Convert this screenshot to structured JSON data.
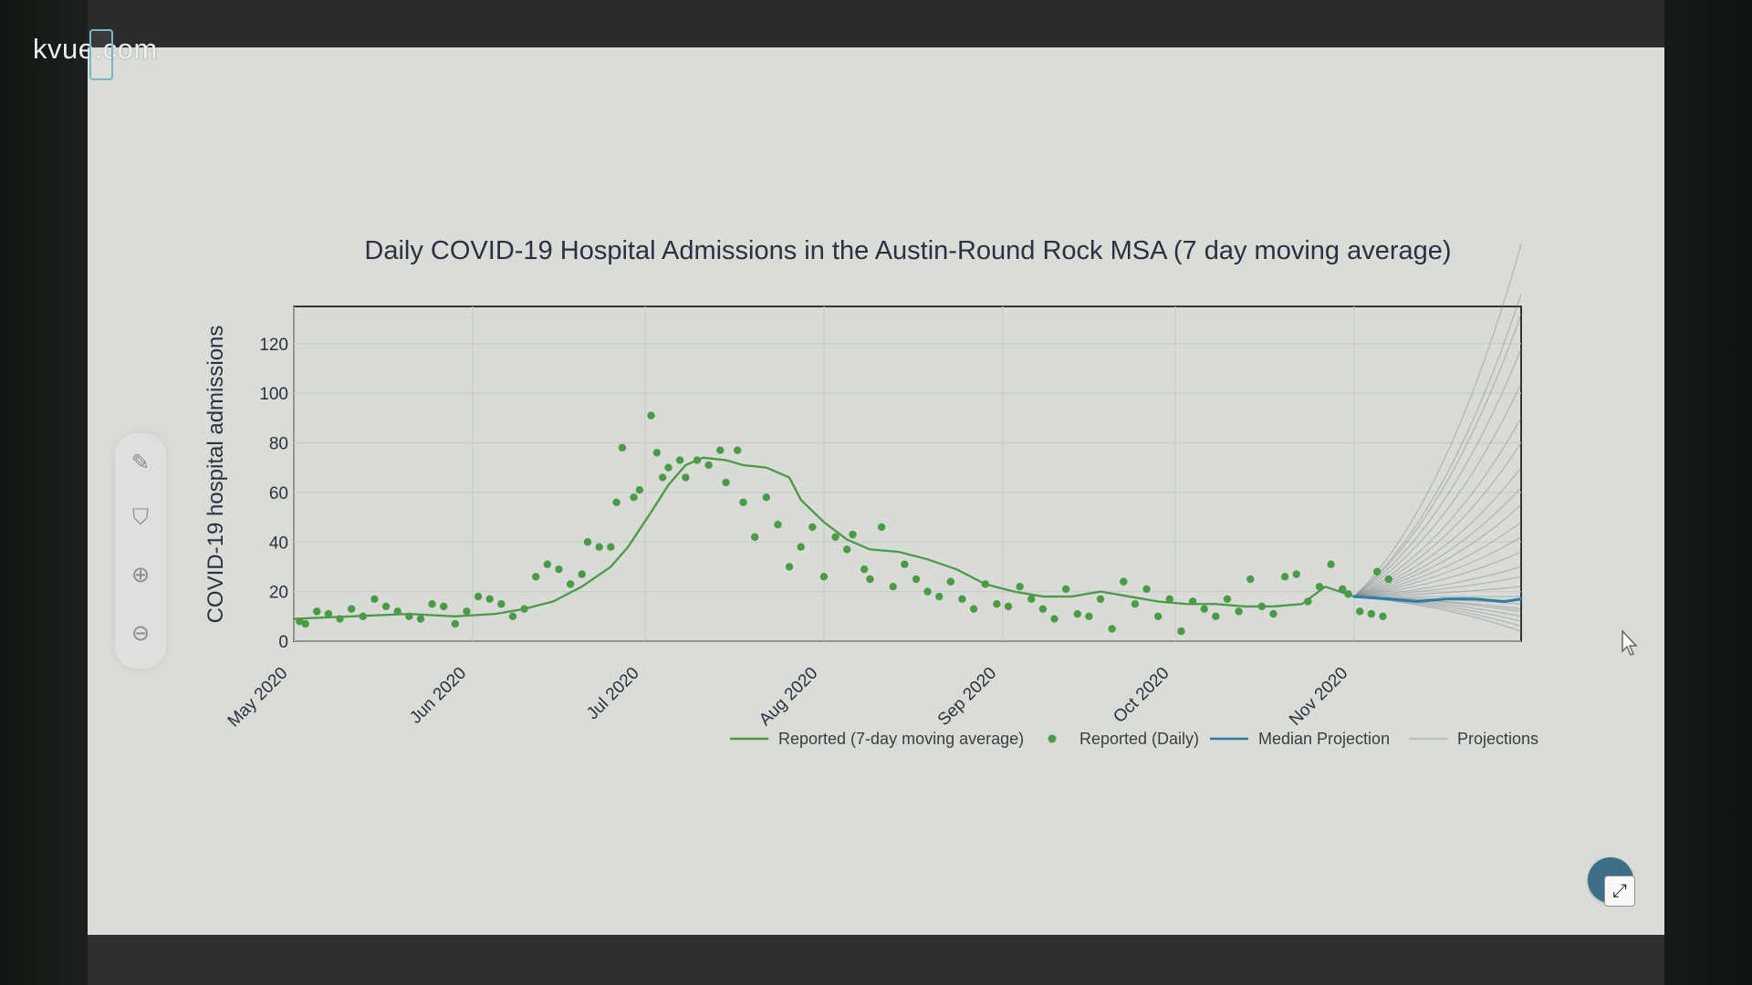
{
  "watermark": "kvue.com",
  "toolbar": {
    "draw_icon": "✎",
    "filter_icon": "⛉",
    "zoom_in_icon": "⊕",
    "zoom_out_icon": "⊖"
  },
  "expand_button": {
    "icon": "⤢"
  },
  "colors": {
    "background": "#d9dcd7",
    "plot_border": "#323232",
    "grid": "#c9ccca",
    "green": "#4a9a48",
    "median": "#2a7fa8",
    "projection": "#7a7d82"
  },
  "chart_data": {
    "type": "line",
    "title": "Daily COVID-19 Hospital Admissions in the Austin-Round Rock MSA (7 day moving average)",
    "xlabel": "",
    "ylabel": "COVID-19 hospital admissions",
    "ylim": [
      0,
      135
    ],
    "y_ticks": [
      0,
      20,
      40,
      60,
      80,
      100,
      120
    ],
    "x_ticks": [
      {
        "label": "May 2020",
        "day": 0
      },
      {
        "label": "Jun 2020",
        "day": 31
      },
      {
        "label": "Jul 2020",
        "day": 61
      },
      {
        "label": "Aug 2020",
        "day": 92
      },
      {
        "label": "Sep 2020",
        "day": 123
      },
      {
        "label": "Oct 2020",
        "day": 153
      },
      {
        "label": "Nov 2020",
        "day": 184
      }
    ],
    "xlim_days": [
      0,
      213
    ],
    "legend": {
      "position": "bottom-right",
      "entries": [
        "Reported (7-day moving average)",
        "Reported (Daily)",
        "Median Projection",
        "Projections"
      ]
    },
    "series": [
      {
        "name": "Reported (7-day moving average)",
        "type": "line",
        "points": [
          {
            "day": 0,
            "value": 9
          },
          {
            "day": 10,
            "value": 10
          },
          {
            "day": 20,
            "value": 11
          },
          {
            "day": 28,
            "value": 10
          },
          {
            "day": 35,
            "value": 11
          },
          {
            "day": 40,
            "value": 13
          },
          {
            "day": 45,
            "value": 16
          },
          {
            "day": 50,
            "value": 22
          },
          {
            "day": 55,
            "value": 30
          },
          {
            "day": 58,
            "value": 38
          },
          {
            "day": 62,
            "value": 52
          },
          {
            "day": 65,
            "value": 63
          },
          {
            "day": 68,
            "value": 71
          },
          {
            "day": 71,
            "value": 74
          },
          {
            "day": 75,
            "value": 73
          },
          {
            "day": 78,
            "value": 71
          },
          {
            "day": 82,
            "value": 70
          },
          {
            "day": 86,
            "value": 66
          },
          {
            "day": 88,
            "value": 57
          },
          {
            "day": 92,
            "value": 48
          },
          {
            "day": 96,
            "value": 41
          },
          {
            "day": 100,
            "value": 37
          },
          {
            "day": 105,
            "value": 36
          },
          {
            "day": 110,
            "value": 33
          },
          {
            "day": 115,
            "value": 29
          },
          {
            "day": 120,
            "value": 23
          },
          {
            "day": 125,
            "value": 20
          },
          {
            "day": 130,
            "value": 18
          },
          {
            "day": 135,
            "value": 18
          },
          {
            "day": 140,
            "value": 20
          },
          {
            "day": 145,
            "value": 18
          },
          {
            "day": 150,
            "value": 16
          },
          {
            "day": 155,
            "value": 15
          },
          {
            "day": 160,
            "value": 15
          },
          {
            "day": 165,
            "value": 14
          },
          {
            "day": 170,
            "value": 14
          },
          {
            "day": 175,
            "value": 15
          },
          {
            "day": 179,
            "value": 22
          },
          {
            "day": 184,
            "value": 18
          }
        ]
      },
      {
        "name": "Reported (Daily)",
        "type": "scatter",
        "points": [
          {
            "day": 1,
            "value": 8
          },
          {
            "day": 2,
            "value": 7
          },
          {
            "day": 4,
            "value": 12
          },
          {
            "day": 6,
            "value": 11
          },
          {
            "day": 8,
            "value": 9
          },
          {
            "day": 10,
            "value": 13
          },
          {
            "day": 12,
            "value": 10
          },
          {
            "day": 14,
            "value": 17
          },
          {
            "day": 16,
            "value": 14
          },
          {
            "day": 18,
            "value": 12
          },
          {
            "day": 20,
            "value": 10
          },
          {
            "day": 22,
            "value": 9
          },
          {
            "day": 24,
            "value": 15
          },
          {
            "day": 26,
            "value": 14
          },
          {
            "day": 28,
            "value": 7
          },
          {
            "day": 30,
            "value": 12
          },
          {
            "day": 32,
            "value": 18
          },
          {
            "day": 34,
            "value": 17
          },
          {
            "day": 36,
            "value": 15
          },
          {
            "day": 38,
            "value": 10
          },
          {
            "day": 40,
            "value": 13
          },
          {
            "day": 42,
            "value": 26
          },
          {
            "day": 44,
            "value": 31
          },
          {
            "day": 46,
            "value": 29
          },
          {
            "day": 48,
            "value": 23
          },
          {
            "day": 50,
            "value": 27
          },
          {
            "day": 51,
            "value": 40
          },
          {
            "day": 53,
            "value": 38
          },
          {
            "day": 55,
            "value": 38
          },
          {
            "day": 56,
            "value": 56
          },
          {
            "day": 57,
            "value": 78
          },
          {
            "day": 59,
            "value": 58
          },
          {
            "day": 60,
            "value": 61
          },
          {
            "day": 62,
            "value": 91
          },
          {
            "day": 63,
            "value": 76
          },
          {
            "day": 64,
            "value": 66
          },
          {
            "day": 65,
            "value": 70
          },
          {
            "day": 67,
            "value": 73
          },
          {
            "day": 68,
            "value": 66
          },
          {
            "day": 70,
            "value": 73
          },
          {
            "day": 72,
            "value": 71
          },
          {
            "day": 74,
            "value": 77
          },
          {
            "day": 75,
            "value": 64
          },
          {
            "day": 77,
            "value": 77
          },
          {
            "day": 78,
            "value": 56
          },
          {
            "day": 80,
            "value": 42
          },
          {
            "day": 82,
            "value": 58
          },
          {
            "day": 84,
            "value": 47
          },
          {
            "day": 86,
            "value": 30
          },
          {
            "day": 88,
            "value": 38
          },
          {
            "day": 90,
            "value": 46
          },
          {
            "day": 92,
            "value": 26
          },
          {
            "day": 94,
            "value": 42
          },
          {
            "day": 96,
            "value": 37
          },
          {
            "day": 97,
            "value": 43
          },
          {
            "day": 99,
            "value": 29
          },
          {
            "day": 100,
            "value": 25
          },
          {
            "day": 102,
            "value": 46
          },
          {
            "day": 104,
            "value": 22
          },
          {
            "day": 106,
            "value": 31
          },
          {
            "day": 108,
            "value": 25
          },
          {
            "day": 110,
            "value": 20
          },
          {
            "day": 112,
            "value": 18
          },
          {
            "day": 114,
            "value": 24
          },
          {
            "day": 116,
            "value": 17
          },
          {
            "day": 118,
            "value": 13
          },
          {
            "day": 120,
            "value": 23
          },
          {
            "day": 122,
            "value": 15
          },
          {
            "day": 124,
            "value": 14
          },
          {
            "day": 126,
            "value": 22
          },
          {
            "day": 128,
            "value": 17
          },
          {
            "day": 130,
            "value": 13
          },
          {
            "day": 132,
            "value": 9
          },
          {
            "day": 134,
            "value": 21
          },
          {
            "day": 136,
            "value": 11
          },
          {
            "day": 138,
            "value": 10
          },
          {
            "day": 140,
            "value": 17
          },
          {
            "day": 142,
            "value": 5
          },
          {
            "day": 144,
            "value": 24
          },
          {
            "day": 146,
            "value": 15
          },
          {
            "day": 148,
            "value": 21
          },
          {
            "day": 150,
            "value": 10
          },
          {
            "day": 152,
            "value": 17
          },
          {
            "day": 154,
            "value": 4
          },
          {
            "day": 156,
            "value": 16
          },
          {
            "day": 158,
            "value": 13
          },
          {
            "day": 160,
            "value": 10
          },
          {
            "day": 162,
            "value": 17
          },
          {
            "day": 164,
            "value": 12
          },
          {
            "day": 166,
            "value": 25
          },
          {
            "day": 168,
            "value": 14
          },
          {
            "day": 170,
            "value": 11
          },
          {
            "day": 172,
            "value": 26
          },
          {
            "day": 174,
            "value": 27
          },
          {
            "day": 176,
            "value": 16
          },
          {
            "day": 178,
            "value": 22
          },
          {
            "day": 180,
            "value": 31
          },
          {
            "day": 182,
            "value": 21
          },
          {
            "day": 183,
            "value": 19
          },
          {
            "day": 185,
            "value": 12
          },
          {
            "day": 187,
            "value": 11
          },
          {
            "day": 188,
            "value": 28
          },
          {
            "day": 189,
            "value": 10
          },
          {
            "day": 190,
            "value": 25
          }
        ]
      },
      {
        "name": "Median Projection",
        "type": "line",
        "points": [
          {
            "day": 184,
            "value": 18
          },
          {
            "day": 190,
            "value": 17
          },
          {
            "day": 195,
            "value": 16
          },
          {
            "day": 200,
            "value": 17
          },
          {
            "day": 205,
            "value": 17
          },
          {
            "day": 210,
            "value": 16
          },
          {
            "day": 213,
            "value": 17
          }
        ]
      },
      {
        "name": "Projections",
        "type": "multi-line",
        "start_day": 184,
        "start_value": 18,
        "end_day": 213,
        "end_values": [
          4,
          6,
          8,
          10,
          12,
          13,
          15,
          18,
          22,
          26,
          30,
          36,
          42,
          48,
          55,
          62,
          70,
          80,
          90,
          104,
          118,
          132,
          140,
          160
        ]
      }
    ]
  }
}
